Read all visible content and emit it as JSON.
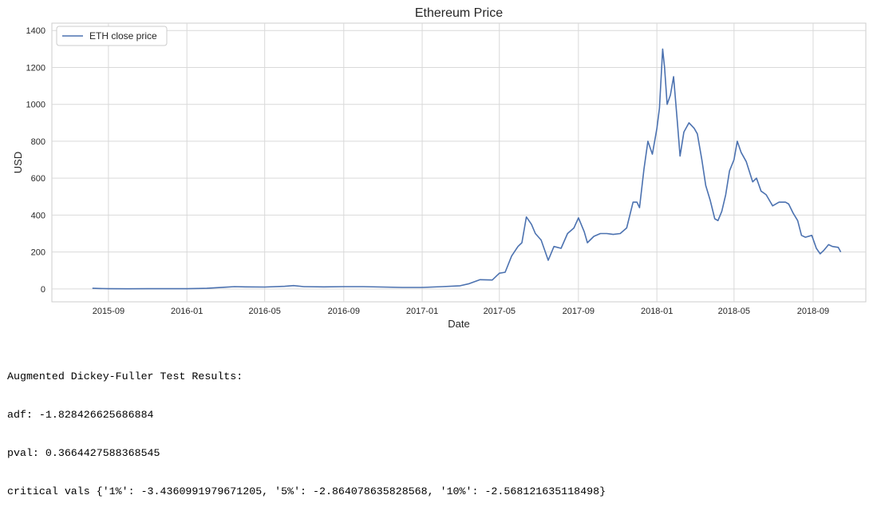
{
  "chart_data": {
    "type": "line",
    "title": "Ethereum Price",
    "xlabel": "Date",
    "ylabel": "USD",
    "ylim": [
      -70,
      1440
    ],
    "yticks": [
      0,
      200,
      400,
      600,
      800,
      1000,
      1200,
      1400
    ],
    "xlim": [
      "2015-06-05",
      "2018-11-22"
    ],
    "xticks": [
      "2015-09",
      "2016-01",
      "2016-05",
      "2016-09",
      "2017-01",
      "2017-05",
      "2017-09",
      "2018-01",
      "2018-05",
      "2018-09"
    ],
    "grid": true,
    "legend_position": "top-left",
    "line_color": "#4c72b0",
    "series": [
      {
        "name": "ETH close price",
        "x": [
          "2015-08-07",
          "2015-09-01",
          "2015-10-01",
          "2015-11-01",
          "2015-12-01",
          "2016-01-01",
          "2016-02-01",
          "2016-03-01",
          "2016-03-15",
          "2016-04-01",
          "2016-05-01",
          "2016-06-01",
          "2016-06-15",
          "2016-07-01",
          "2016-08-01",
          "2016-09-01",
          "2016-10-01",
          "2016-11-01",
          "2016-12-01",
          "2017-01-01",
          "2017-02-01",
          "2017-03-01",
          "2017-03-15",
          "2017-04-01",
          "2017-04-20",
          "2017-05-01",
          "2017-05-10",
          "2017-05-20",
          "2017-05-30",
          "2017-06-05",
          "2017-06-12",
          "2017-06-20",
          "2017-06-26",
          "2017-07-05",
          "2017-07-16",
          "2017-07-25",
          "2017-08-05",
          "2017-08-15",
          "2017-08-25",
          "2017-09-01",
          "2017-09-10",
          "2017-09-15",
          "2017-09-25",
          "2017-10-05",
          "2017-10-15",
          "2017-10-25",
          "2017-11-05",
          "2017-11-15",
          "2017-11-25",
          "2017-12-01",
          "2017-12-05",
          "2017-12-12",
          "2017-12-18",
          "2017-12-25",
          "2018-01-01",
          "2018-01-05",
          "2018-01-10",
          "2018-01-13",
          "2018-01-17",
          "2018-01-22",
          "2018-01-27",
          "2018-02-02",
          "2018-02-06",
          "2018-02-12",
          "2018-02-20",
          "2018-02-28",
          "2018-03-05",
          "2018-03-12",
          "2018-03-18",
          "2018-03-25",
          "2018-04-01",
          "2018-04-06",
          "2018-04-12",
          "2018-04-18",
          "2018-04-24",
          "2018-05-01",
          "2018-05-06",
          "2018-05-12",
          "2018-05-20",
          "2018-05-30",
          "2018-06-05",
          "2018-06-12",
          "2018-06-20",
          "2018-06-30",
          "2018-07-10",
          "2018-07-20",
          "2018-07-25",
          "2018-08-01",
          "2018-08-08",
          "2018-08-14",
          "2018-08-20",
          "2018-08-30",
          "2018-09-06",
          "2018-09-12",
          "2018-09-18",
          "2018-09-25",
          "2018-10-01",
          "2018-10-10",
          "2018-10-14"
        ],
        "values": [
          3,
          1,
          0.6,
          0.9,
          0.9,
          1,
          3,
          9,
          12,
          11,
          10,
          14,
          18,
          12,
          11,
          12,
          12,
          10,
          8,
          8,
          12,
          17,
          28,
          50,
          48,
          85,
          90,
          178,
          230,
          250,
          390,
          350,
          300,
          265,
          155,
          230,
          220,
          300,
          330,
          385,
          310,
          250,
          285,
          300,
          300,
          295,
          300,
          330,
          470,
          470,
          440,
          650,
          800,
          730,
          870,
          980,
          1300,
          1200,
          1000,
          1050,
          1150,
          900,
          720,
          850,
          900,
          870,
          840,
          700,
          560,
          480,
          380,
          370,
          420,
          510,
          640,
          700,
          800,
          740,
          690,
          580,
          600,
          530,
          510,
          450,
          470,
          470,
          460,
          410,
          370,
          290,
          280,
          290,
          220,
          190,
          210,
          240,
          230,
          225,
          200
        ]
      }
    ]
  },
  "output": {
    "lines": [
      "Augmented Dickey-Fuller Test Results:",
      "adf: -1.828426625686884",
      "pval: 0.3664427588368545",
      "critical vals {'1%': -3.4360991979671205, '5%': -2.864078635828568, '10%': -2.568121635118498}"
    ]
  }
}
